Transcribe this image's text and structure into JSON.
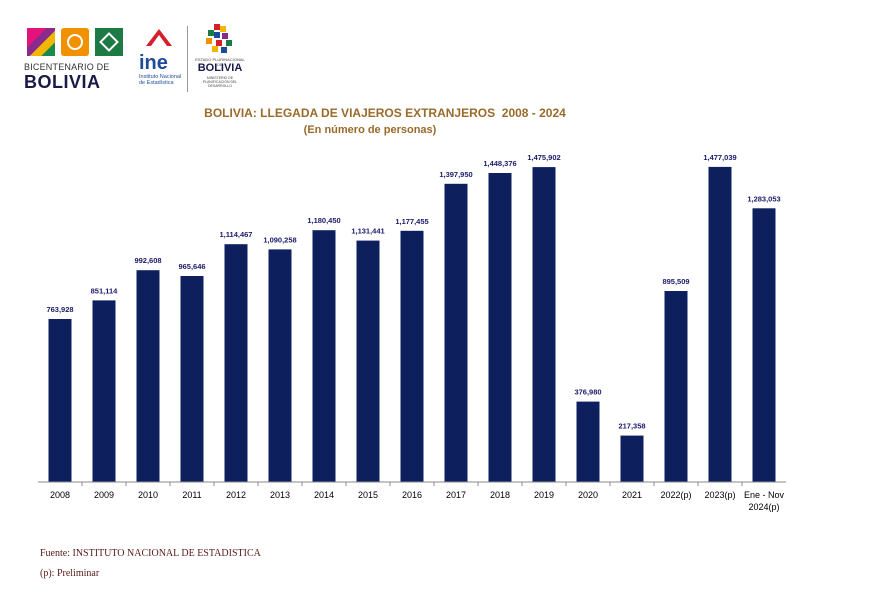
{
  "logos": {
    "bicentenario_sub": "BICENTENARIO DE",
    "bicentenario_main": "BOLIVIA",
    "ine_word": "ine",
    "ine_sub": "Instituto Nacional de Estadística",
    "edp_top": "ESTADO PLURINACIONAL DE",
    "edp_main": "BOLIVIA",
    "edp_sub": "MINISTERIO DE PLANIFICACIÓN DEL DESARROLLO"
  },
  "chart_data": {
    "type": "bar",
    "title": "BOLIVIA: LLEGADA DE VIAJEROS EXTRANJEROS  2008 - 2024",
    "subtitle": "(En número de personas)",
    "categories": [
      "2008",
      "2009",
      "2010",
      "2011",
      "2012",
      "2013",
      "2014",
      "2015",
      "2016",
      "2017",
      "2018",
      "2019",
      "2020",
      "2021",
      "2022(p)",
      "2023(p)",
      "Ene - Nov 2024(p)"
    ],
    "values": [
      763928,
      851114,
      992608,
      965646,
      1114467,
      1090258,
      1180450,
      1131441,
      1177455,
      1397950,
      1448376,
      1475902,
      376980,
      217358,
      895509,
      1477039,
      1283053
    ],
    "value_labels": [
      "763,928",
      "851,114",
      "992,608",
      "965,646",
      "1,114,467",
      "1,090,258",
      "1,180,450",
      "1,131,441",
      "1,177,455",
      "1,397,950",
      "1,448,376",
      "1,475,902",
      "376,980",
      "217,358",
      "895,509",
      "1,477,039",
      "1,283,053"
    ],
    "ylim": [
      0,
      1500000
    ],
    "bar_color": "#0d1f5c",
    "grid": false,
    "legend": "none"
  },
  "footer": {
    "source": "Fuente: INSTITUTO NACIONAL DE ESTADISTICA",
    "note": "(p): Preliminar"
  }
}
